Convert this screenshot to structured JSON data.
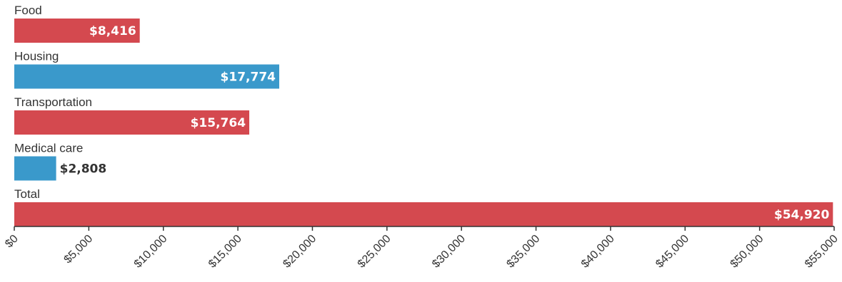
{
  "chart_data": {
    "type": "bar",
    "orientation": "horizontal",
    "categories": [
      "Food",
      "Housing",
      "Transportation",
      "Medical care",
      "Total"
    ],
    "values": [
      8416,
      17774,
      15764,
      2808,
      54920
    ],
    "value_labels": [
      "$8,416",
      "$17,774",
      "$15,764",
      "$2,808",
      "$54,920"
    ],
    "bar_colors": [
      "#d4494f",
      "#3a99cb",
      "#d4494f",
      "#3a99cb",
      "#d4494f"
    ],
    "xlim": [
      0,
      55000
    ],
    "x_ticks": [
      0,
      5000,
      10000,
      15000,
      20000,
      25000,
      30000,
      35000,
      40000,
      45000,
      50000,
      55000
    ],
    "x_tick_labels": [
      "$0",
      "$5,000",
      "$10,000",
      "$15,000",
      "$20,000",
      "$25,000",
      "$30,000",
      "$35,000",
      "$40,000",
      "$45,000",
      "$50,000",
      "$55,000"
    ],
    "title": "",
    "xlabel": "",
    "ylabel": "",
    "grid": false,
    "legend": "none"
  }
}
